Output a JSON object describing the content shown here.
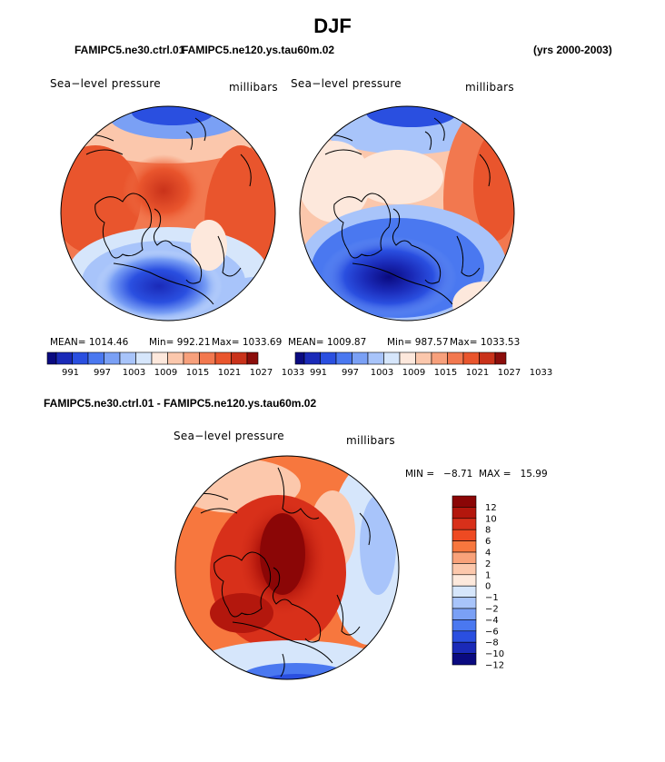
{
  "title": "DJF",
  "header": {
    "case_a": "FAMIPC5.ne30.ctrl.01",
    "case_b": "FAMIPC5.ne120.ys.tau60m.02",
    "years": "(yrs 2000-2003)"
  },
  "panel_left": {
    "field": "Sea−level pressure",
    "units": "millibars",
    "stats": {
      "mean": "MEAN= 1014.46",
      "min": "Min= 992.21",
      "max": "Max= 1033.69"
    }
  },
  "panel_right": {
    "field": "Sea−level pressure",
    "units": "millibars",
    "stats": {
      "mean": "MEAN= 1009.87",
      "min": "Min= 987.57",
      "max": "Max= 1033.53"
    }
  },
  "diff": {
    "title": "FAMIPC5.ne30.ctrl.01 - FAMIPC5.ne120.ys.tau60m.02",
    "field": "Sea−level pressure",
    "units": "millibars",
    "minmax": "MIN =   −8.71  MAX =   15.99"
  },
  "abs_colorbar": {
    "colors": [
      "#0a0a80",
      "#1a2ab8",
      "#2a4fe0",
      "#4a78f0",
      "#7aa0f5",
      "#a8c4fa",
      "#d6e6fb",
      "#fde8dc",
      "#fbc7ac",
      "#f7a07c",
      "#f2784f",
      "#e9552d",
      "#c9321a",
      "#8b0d0b"
    ],
    "labels": [
      "991",
      "997",
      "1003",
      "1009",
      "1015",
      "1021",
      "1027",
      "1033"
    ]
  },
  "diff_colorbar": {
    "colors": [
      "#8b0606",
      "#b3170d",
      "#d8301a",
      "#ee4a22",
      "#f7773e",
      "#f9a27a",
      "#fcc8ac",
      "#fde9dc",
      "#d6e6fb",
      "#a8c4fa",
      "#7aa0f5",
      "#4a78f0",
      "#2a4fe0",
      "#1a2ab8",
      "#0a0a80"
    ],
    "labels": [
      "12",
      "10",
      "8",
      "6",
      "4",
      "2",
      "1",
      "0",
      "−1",
      "−2",
      "−4",
      "−6",
      "−8",
      "−10",
      "−12"
    ]
  }
}
